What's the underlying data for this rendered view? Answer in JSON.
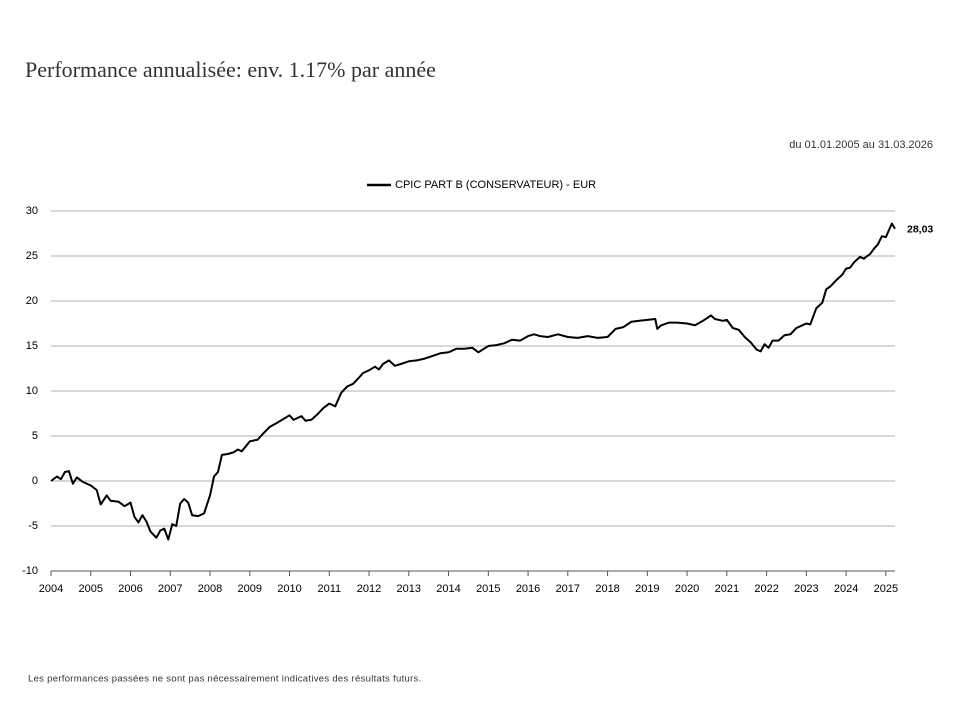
{
  "chart_data": {
    "type": "line",
    "title": "Performance annualisée: env. 1.17% par année",
    "subtitle": "du 01.01.2005 au 31.03.2026",
    "footnote": "Les performances passées ne sont pas nécessairement indicatives des résultats futurs.",
    "grid": true,
    "xlim": [
      2004,
      2025.23
    ],
    "ylim": [
      -10,
      30
    ],
    "xticks": [
      2004,
      2005,
      2006,
      2007,
      2008,
      2009,
      2010,
      2011,
      2012,
      2013,
      2014,
      2015,
      2016,
      2017,
      2018,
      2019,
      2020,
      2021,
      2022,
      2023,
      2024,
      2025
    ],
    "yticks": [
      -10,
      -5,
      0,
      5,
      10,
      15,
      20,
      25,
      30
    ],
    "annotations": [
      {
        "text": "28,03",
        "x": 2025.23,
        "y": 28.03
      }
    ],
    "series": [
      {
        "name": "CPIC PART B (CONSERVATEUR) - EUR",
        "color": "#000000",
        "x": [
          2004,
          2004.15,
          2004.25,
          2004.35,
          2004.45,
          2004.55,
          2004.65,
          2004.8,
          2005,
          2005.15,
          2005.25,
          2005.4,
          2005.5,
          2005.7,
          2005.85,
          2006,
          2006.1,
          2006.2,
          2006.3,
          2006.4,
          2006.5,
          2006.65,
          2006.75,
          2006.85,
          2006.95,
          2007.05,
          2007.15,
          2007.25,
          2007.35,
          2007.45,
          2007.55,
          2007.7,
          2007.85,
          2008,
          2008.1,
          2008.2,
          2008.3,
          2008.45,
          2008.6,
          2008.7,
          2008.8,
          2009,
          2009.2,
          2009.3,
          2009.5,
          2009.7,
          2009.85,
          2010,
          2010.1,
          2010.3,
          2010.4,
          2010.55,
          2010.7,
          2010.85,
          2011,
          2011.15,
          2011.3,
          2011.45,
          2011.6,
          2011.75,
          2011.85,
          2012,
          2012.15,
          2012.25,
          2012.35,
          2012.5,
          2012.65,
          2012.8,
          2013,
          2013.2,
          2013.4,
          2013.6,
          2013.8,
          2014,
          2014.2,
          2014.4,
          2014.6,
          2014.75,
          2015,
          2015.2,
          2015.4,
          2015.6,
          2015.8,
          2016,
          2016.15,
          2016.3,
          2016.5,
          2016.75,
          2017,
          2017.25,
          2017.5,
          2017.75,
          2018,
          2018.2,
          2018.4,
          2018.6,
          2018.8,
          2019,
          2019.2,
          2019.25,
          2019.35,
          2019.55,
          2019.75,
          2020,
          2020.2,
          2020.4,
          2020.6,
          2020.7,
          2020.9,
          2021,
          2021.15,
          2021.3,
          2021.45,
          2021.6,
          2021.75,
          2021.85,
          2021.95,
          2022.05,
          2022.15,
          2022.3,
          2022.45,
          2022.6,
          2022.75,
          2022.9,
          2023,
          2023.1,
          2023.25,
          2023.4,
          2023.5,
          2023.6,
          2023.75,
          2023.9,
          2024,
          2024.1,
          2024.2,
          2024.35,
          2024.45,
          2024.5,
          2024.6,
          2024.7,
          2024.8,
          2024.9,
          2025,
          2025.05,
          2025.15,
          2025.23
        ],
        "values": [
          0,
          0.5,
          0.2,
          1.0,
          1.1,
          -0.3,
          0.4,
          -0.1,
          -0.5,
          -1,
          -2.6,
          -1.6,
          -2.2,
          -2.3,
          -2.8,
          -2.4,
          -4,
          -4.6,
          -3.8,
          -4.5,
          -5.6,
          -6.3,
          -5.5,
          -5.3,
          -6.5,
          -4.8,
          -5,
          -2.5,
          -2,
          -2.4,
          -3.8,
          -3.9,
          -3.6,
          -1.6,
          0.5,
          1,
          2.9,
          3,
          3.2,
          3.5,
          3.3,
          4.4,
          4.6,
          5.1,
          6,
          6.5,
          6.9,
          7.3,
          6.8,
          7.2,
          6.7,
          6.8,
          7.4,
          8.1,
          8.6,
          8.3,
          9.8,
          10.5,
          10.8,
          11.5,
          12,
          12.3,
          12.7,
          12.4,
          13,
          13.4,
          12.8,
          13,
          13.3,
          13.4,
          13.6,
          13.9,
          14.2,
          14.3,
          14.7,
          14.7,
          14.8,
          14.3,
          15,
          15.1,
          15.3,
          15.7,
          15.6,
          16.1,
          16.3,
          16.1,
          16,
          16.3,
          16,
          15.9,
          16.1,
          15.9,
          16,
          16.9,
          17.1,
          17.7,
          17.8,
          17.9,
          18,
          16.9,
          17.3,
          17.6,
          17.6,
          17.5,
          17.3,
          17.8,
          18.4,
          18,
          17.8,
          17.9,
          17,
          16.8,
          16,
          15.4,
          14.6,
          14.4,
          15.2,
          14.8,
          15.6,
          15.6,
          16.2,
          16.3,
          17,
          17.3,
          17.5,
          17.4,
          19.2,
          19.8,
          21.3,
          21.6,
          22.3,
          22.9,
          23.6,
          23.7,
          24.3,
          24.9,
          24.7,
          24.9,
          25.2,
          25.8,
          26.3,
          27.2,
          27.1,
          27.6,
          28.6,
          28.03
        ]
      }
    ]
  }
}
